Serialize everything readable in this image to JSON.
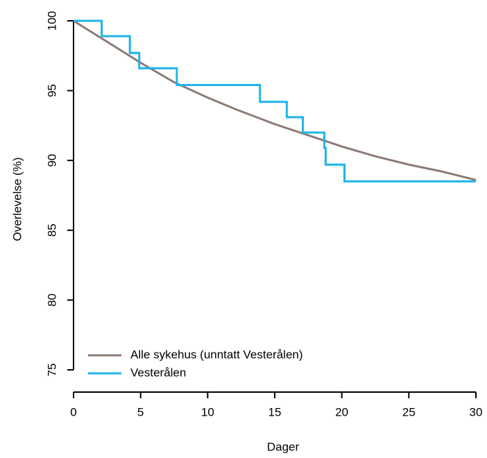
{
  "chart_data": {
    "type": "line",
    "step": true,
    "x_label": "Dager",
    "y_label": "Overlevelse (%)",
    "xlim": [
      0,
      30
    ],
    "xticks": [
      0,
      5,
      10,
      15,
      20,
      25,
      30
    ],
    "ylim": [
      75,
      100
    ],
    "yticks": [
      75,
      80,
      85,
      90,
      95,
      100
    ],
    "legend": "bottom-left",
    "series": [
      {
        "name": "Alle sykehus (unntatt Vesterålen)",
        "color": "#8c7b75",
        "step": false,
        "x": [
          0,
          2,
          4,
          5,
          7.5,
          10,
          12,
          15,
          17.5,
          20,
          22.5,
          25,
          27.5,
          30
        ],
        "values": [
          100,
          98.8,
          97.6,
          97.0,
          95.6,
          94.5,
          93.7,
          92.6,
          91.8,
          91.0,
          90.3,
          89.7,
          89.2,
          88.6
        ]
      },
      {
        "name": "Vesterålen",
        "color": "#1eb4ea",
        "step": true,
        "x": [
          0,
          2.1,
          4.2,
          4.9,
          7.7,
          13.9,
          15.9,
          17.1,
          18.7,
          18.8,
          20.2,
          30
        ],
        "values": [
          100,
          98.9,
          97.7,
          96.6,
          95.4,
          94.2,
          93.1,
          92.0,
          90.9,
          89.7,
          88.5,
          88.5
        ]
      }
    ]
  }
}
